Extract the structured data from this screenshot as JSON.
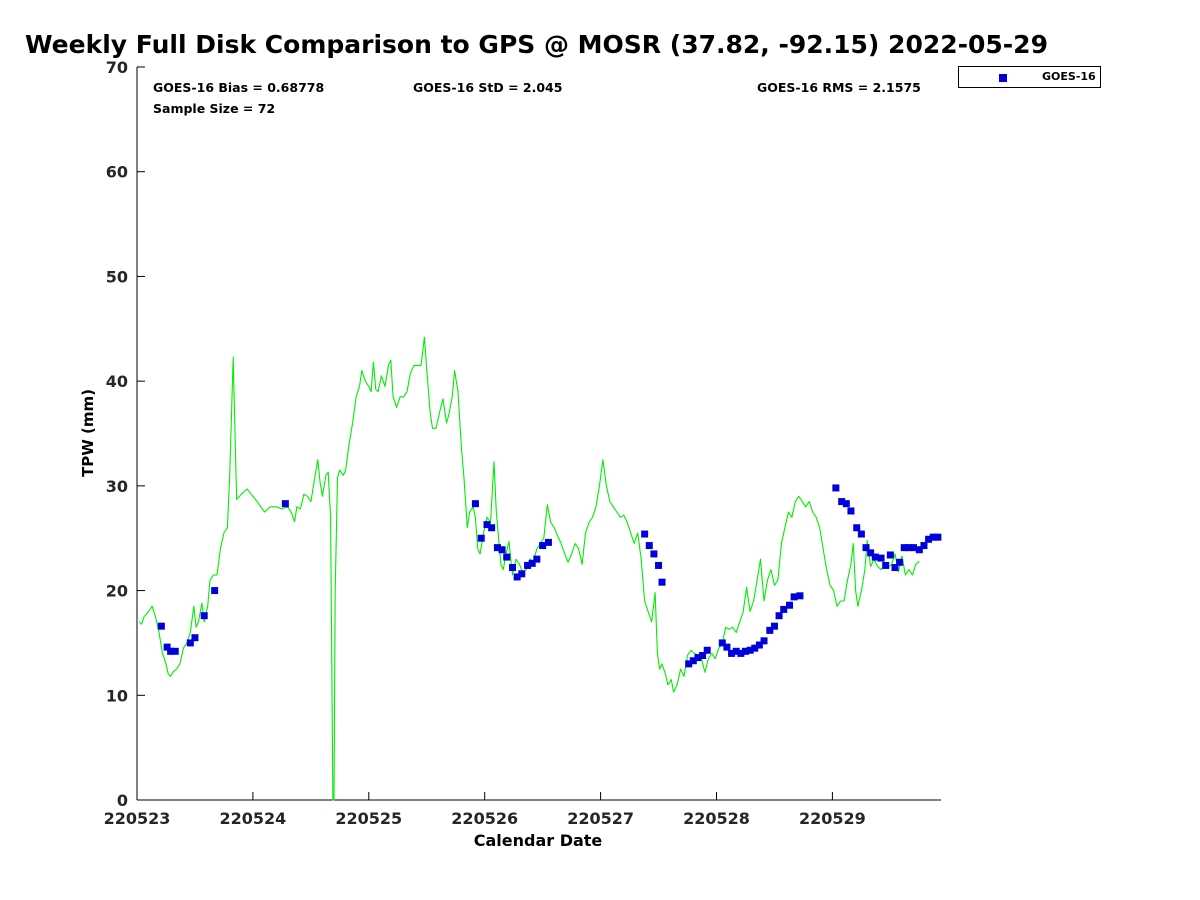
{
  "chart_data": {
    "type": "line+scatter",
    "title": "Weekly Full Disk Comparison to GPS @ MOSR (37.82, -92.15) 2022-05-29",
    "xlabel": "Calendar Date",
    "ylabel": "TPW (mm)",
    "xlim": [
      0,
      6.95
    ],
    "ylim": [
      0,
      70
    ],
    "yticks": [
      0,
      10,
      20,
      30,
      40,
      50,
      60,
      70
    ],
    "xtick_positions": [
      0,
      1,
      2,
      3,
      4,
      5,
      6
    ],
    "xtick_labels": [
      "220523",
      "220524",
      "220525",
      "220526",
      "220527",
      "220528",
      "220529"
    ],
    "grid": false,
    "legend_position": "top-right",
    "stats": {
      "bias": "GOES-16 Bias = 0.68778",
      "std": "GOES-16 StD = 2.045",
      "rms": "GOES-16 RMS = 2.1575",
      "sample": "Sample Size = 72"
    },
    "series": [
      {
        "name": "GPS",
        "style": "line",
        "color": "#00ee00",
        "points": [
          [
            0.02,
            17.0
          ],
          [
            0.04,
            16.8
          ],
          [
            0.06,
            17.5
          ],
          [
            0.1,
            18.0
          ],
          [
            0.13,
            18.5
          ],
          [
            0.16,
            17.5
          ],
          [
            0.19,
            16.0
          ],
          [
            0.22,
            14.0
          ],
          [
            0.25,
            13.0
          ],
          [
            0.27,
            12.0
          ],
          [
            0.29,
            11.8
          ],
          [
            0.31,
            12.2
          ],
          [
            0.34,
            12.5
          ],
          [
            0.37,
            13.0
          ],
          [
            0.4,
            14.5
          ],
          [
            0.43,
            15.0
          ],
          [
            0.46,
            16.0
          ],
          [
            0.49,
            18.5
          ],
          [
            0.51,
            16.5
          ],
          [
            0.53,
            17.0
          ],
          [
            0.56,
            18.8
          ],
          [
            0.58,
            17.0
          ],
          [
            0.61,
            18.5
          ],
          [
            0.63,
            21.0
          ],
          [
            0.66,
            21.5
          ],
          [
            0.69,
            21.5
          ],
          [
            0.72,
            24.0
          ],
          [
            0.75,
            25.5
          ],
          [
            0.78,
            26.0
          ],
          [
            0.8,
            31.0
          ],
          [
            0.83,
            42.3
          ],
          [
            0.85,
            33.0
          ],
          [
            0.86,
            28.7
          ],
          [
            0.9,
            29.2
          ],
          [
            0.95,
            29.7
          ],
          [
            1.0,
            29.0
          ],
          [
            1.05,
            28.3
          ],
          [
            1.1,
            27.5
          ],
          [
            1.15,
            28.0
          ],
          [
            1.2,
            28.0
          ],
          [
            1.25,
            27.8
          ],
          [
            1.3,
            28.0
          ],
          [
            1.33,
            27.5
          ],
          [
            1.36,
            26.6
          ],
          [
            1.38,
            28.0
          ],
          [
            1.41,
            27.8
          ],
          [
            1.44,
            29.2
          ],
          [
            1.47,
            29.0
          ],
          [
            1.5,
            28.5
          ],
          [
            1.53,
            30.5
          ],
          [
            1.56,
            32.5
          ],
          [
            1.58,
            30.3
          ],
          [
            1.6,
            29.0
          ],
          [
            1.63,
            31.0
          ],
          [
            1.65,
            31.3
          ],
          [
            1.67,
            27.0
          ],
          [
            1.69,
            0
          ],
          [
            1.7,
            0
          ],
          [
            1.71,
            20.0
          ],
          [
            1.73,
            30.8
          ],
          [
            1.75,
            31.5
          ],
          [
            1.78,
            31.0
          ],
          [
            1.8,
            31.5
          ],
          [
            1.83,
            34.0
          ],
          [
            1.86,
            36.0
          ],
          [
            1.89,
            38.5
          ],
          [
            1.92,
            39.5
          ],
          [
            1.94,
            41.0
          ],
          [
            1.97,
            40.0
          ],
          [
            2.0,
            39.5
          ],
          [
            2.02,
            39.0
          ],
          [
            2.04,
            41.8
          ],
          [
            2.06,
            39.2
          ],
          [
            2.08,
            39.0
          ],
          [
            2.11,
            40.5
          ],
          [
            2.14,
            39.5
          ],
          [
            2.17,
            41.5
          ],
          [
            2.19,
            42.0
          ],
          [
            2.21,
            38.5
          ],
          [
            2.24,
            37.5
          ],
          [
            2.27,
            38.5
          ],
          [
            2.3,
            38.5
          ],
          [
            2.33,
            39.0
          ],
          [
            2.36,
            40.8
          ],
          [
            2.39,
            41.5
          ],
          [
            2.42,
            41.5
          ],
          [
            2.45,
            41.5
          ],
          [
            2.48,
            44.2
          ],
          [
            2.5,
            41.0
          ],
          [
            2.53,
            37.0
          ],
          [
            2.55,
            35.5
          ],
          [
            2.58,
            35.5
          ],
          [
            2.61,
            37.0
          ],
          [
            2.64,
            38.3
          ],
          [
            2.67,
            36.0
          ],
          [
            2.69,
            36.8
          ],
          [
            2.72,
            38.5
          ],
          [
            2.74,
            41.0
          ],
          [
            2.77,
            39.0
          ],
          [
            2.8,
            33.5
          ],
          [
            2.82,
            31.0
          ],
          [
            2.85,
            26.0
          ],
          [
            2.87,
            27.5
          ],
          [
            2.9,
            28.0
          ],
          [
            2.92,
            27.0
          ],
          [
            2.94,
            24.0
          ],
          [
            2.96,
            23.5
          ],
          [
            2.99,
            25.5
          ],
          [
            3.02,
            27.0
          ],
          [
            3.05,
            26.5
          ],
          [
            3.08,
            32.3
          ],
          [
            3.1,
            27.5
          ],
          [
            3.12,
            25.0
          ],
          [
            3.14,
            22.5
          ],
          [
            3.16,
            22.0
          ],
          [
            3.19,
            23.8
          ],
          [
            3.21,
            24.7
          ],
          [
            3.24,
            21.5
          ],
          [
            3.27,
            23.0
          ],
          [
            3.3,
            22.5
          ],
          [
            3.33,
            21.7
          ],
          [
            3.36,
            22.0
          ],
          [
            3.39,
            23.0
          ],
          [
            3.42,
            22.8
          ],
          [
            3.45,
            24.0
          ],
          [
            3.48,
            24.5
          ],
          [
            3.51,
            25.0
          ],
          [
            3.54,
            28.2
          ],
          [
            3.57,
            26.5
          ],
          [
            3.6,
            26.0
          ],
          [
            3.63,
            25.2
          ],
          [
            3.66,
            24.5
          ],
          [
            3.69,
            23.5
          ],
          [
            3.72,
            22.7
          ],
          [
            3.75,
            23.5
          ],
          [
            3.78,
            24.5
          ],
          [
            3.81,
            24.0
          ],
          [
            3.84,
            22.5
          ],
          [
            3.87,
            25.5
          ],
          [
            3.9,
            26.5
          ],
          [
            3.93,
            27.0
          ],
          [
            3.96,
            28.0
          ],
          [
            3.99,
            30.0
          ],
          [
            4.02,
            32.5
          ],
          [
            4.05,
            30.0
          ],
          [
            4.08,
            28.5
          ],
          [
            4.11,
            28.0
          ],
          [
            4.14,
            27.5
          ],
          [
            4.17,
            27.0
          ],
          [
            4.2,
            27.2
          ],
          [
            4.23,
            26.5
          ],
          [
            4.26,
            25.5
          ],
          [
            4.29,
            24.5
          ],
          [
            4.32,
            25.5
          ],
          [
            4.35,
            23.0
          ],
          [
            4.38,
            19.0
          ],
          [
            4.41,
            18.0
          ],
          [
            4.44,
            17.0
          ],
          [
            4.47,
            19.8
          ],
          [
            4.49,
            14.0
          ],
          [
            4.51,
            12.5
          ],
          [
            4.53,
            13.0
          ],
          [
            4.56,
            12.0
          ],
          [
            4.58,
            11.0
          ],
          [
            4.61,
            11.5
          ],
          [
            4.63,
            10.3
          ],
          [
            4.66,
            11.0
          ],
          [
            4.69,
            12.5
          ],
          [
            4.72,
            11.8
          ],
          [
            4.75,
            13.8
          ],
          [
            4.78,
            14.3
          ],
          [
            4.81,
            14.0
          ],
          [
            4.84,
            13.8
          ],
          [
            4.87,
            13.5
          ],
          [
            4.9,
            12.2
          ],
          [
            4.93,
            13.5
          ],
          [
            4.96,
            14.0
          ],
          [
            4.99,
            13.5
          ],
          [
            5.02,
            14.5
          ],
          [
            5.05,
            15.0
          ],
          [
            5.08,
            16.5
          ],
          [
            5.11,
            16.3
          ],
          [
            5.14,
            16.5
          ],
          [
            5.17,
            16.0
          ],
          [
            5.2,
            17.0
          ],
          [
            5.23,
            18.0
          ],
          [
            5.26,
            20.3
          ],
          [
            5.29,
            18.0
          ],
          [
            5.32,
            19.0
          ],
          [
            5.35,
            21.0
          ],
          [
            5.38,
            23.0
          ],
          [
            5.41,
            19.0
          ],
          [
            5.44,
            21.0
          ],
          [
            5.47,
            22.0
          ],
          [
            5.5,
            20.5
          ],
          [
            5.53,
            21.0
          ],
          [
            5.56,
            24.5
          ],
          [
            5.59,
            26.0
          ],
          [
            5.62,
            27.5
          ],
          [
            5.65,
            27.0
          ],
          [
            5.68,
            28.5
          ],
          [
            5.71,
            29.0
          ],
          [
            5.74,
            28.5
          ],
          [
            5.77,
            28.0
          ],
          [
            5.8,
            28.5
          ],
          [
            5.83,
            27.5
          ],
          [
            5.86,
            27.0
          ],
          [
            5.89,
            26.0
          ],
          [
            5.92,
            24.0
          ],
          [
            5.95,
            22.0
          ],
          [
            5.98,
            20.5
          ],
          [
            6.01,
            20.0
          ],
          [
            6.04,
            18.5
          ],
          [
            6.07,
            19.0
          ],
          [
            6.1,
            19.0
          ],
          [
            6.13,
            21.0
          ],
          [
            6.16,
            22.5
          ],
          [
            6.18,
            24.5
          ],
          [
            6.2,
            20.0
          ],
          [
            6.22,
            18.5
          ],
          [
            6.25,
            20.0
          ],
          [
            6.28,
            22.0
          ],
          [
            6.3,
            24.8
          ],
          [
            6.33,
            22.3
          ],
          [
            6.36,
            23.0
          ],
          [
            6.39,
            22.3
          ],
          [
            6.42,
            22.0
          ],
          [
            6.45,
            22.5
          ],
          [
            6.48,
            22.2
          ],
          [
            6.51,
            22.5
          ],
          [
            6.54,
            23.5
          ],
          [
            6.57,
            21.8
          ],
          [
            6.6,
            23.3
          ],
          [
            6.63,
            21.5
          ],
          [
            6.66,
            22.0
          ],
          [
            6.69,
            21.5
          ],
          [
            6.72,
            22.5
          ],
          [
            6.75,
            22.8
          ]
        ]
      },
      {
        "name": "GOES-16",
        "style": "scatter",
        "color": "#0000dd",
        "points": [
          [
            0.21,
            16.6
          ],
          [
            0.26,
            14.6
          ],
          [
            0.29,
            14.2
          ],
          [
            0.33,
            14.2
          ],
          [
            0.46,
            15.0
          ],
          [
            0.5,
            15.5
          ],
          [
            0.58,
            17.6
          ],
          [
            0.67,
            20.0
          ],
          [
            1.28,
            28.3
          ],
          [
            2.92,
            28.3
          ],
          [
            2.97,
            25.0
          ],
          [
            3.02,
            26.3
          ],
          [
            3.06,
            26.0
          ],
          [
            3.11,
            24.1
          ],
          [
            3.15,
            23.9
          ],
          [
            3.19,
            23.2
          ],
          [
            3.24,
            22.2
          ],
          [
            3.28,
            21.3
          ],
          [
            3.32,
            21.6
          ],
          [
            3.37,
            22.4
          ],
          [
            3.41,
            22.6
          ],
          [
            3.45,
            23.0
          ],
          [
            3.5,
            24.3
          ],
          [
            3.55,
            24.6
          ],
          [
            4.38,
            25.4
          ],
          [
            4.42,
            24.3
          ],
          [
            4.46,
            23.5
          ],
          [
            4.5,
            22.4
          ],
          [
            4.53,
            20.8
          ],
          [
            4.76,
            13.0
          ],
          [
            4.8,
            13.3
          ],
          [
            4.84,
            13.6
          ],
          [
            4.88,
            13.8
          ],
          [
            4.92,
            14.3
          ],
          [
            5.05,
            15.0
          ],
          [
            5.09,
            14.6
          ],
          [
            5.13,
            14.0
          ],
          [
            5.17,
            14.2
          ],
          [
            5.21,
            14.0
          ],
          [
            5.25,
            14.2
          ],
          [
            5.29,
            14.3
          ],
          [
            5.33,
            14.5
          ],
          [
            5.37,
            14.8
          ],
          [
            5.41,
            15.2
          ],
          [
            5.46,
            16.2
          ],
          [
            5.5,
            16.6
          ],
          [
            5.54,
            17.6
          ],
          [
            5.58,
            18.2
          ],
          [
            5.63,
            18.6
          ],
          [
            5.67,
            19.4
          ],
          [
            5.72,
            19.5
          ],
          [
            6.03,
            29.8
          ],
          [
            6.08,
            28.5
          ],
          [
            6.12,
            28.3
          ],
          [
            6.16,
            27.6
          ],
          [
            6.21,
            26.0
          ],
          [
            6.25,
            25.4
          ],
          [
            6.29,
            24.1
          ],
          [
            6.33,
            23.6
          ],
          [
            6.37,
            23.2
          ],
          [
            6.42,
            23.1
          ],
          [
            6.46,
            22.4
          ],
          [
            6.5,
            23.4
          ],
          [
            6.54,
            22.2
          ],
          [
            6.58,
            22.7
          ],
          [
            6.62,
            24.1
          ],
          [
            6.66,
            24.1
          ],
          [
            6.7,
            24.1
          ],
          [
            6.75,
            23.9
          ],
          [
            6.79,
            24.3
          ],
          [
            6.83,
            24.9
          ],
          [
            6.87,
            25.1
          ],
          [
            6.91,
            25.1
          ]
        ]
      }
    ]
  }
}
